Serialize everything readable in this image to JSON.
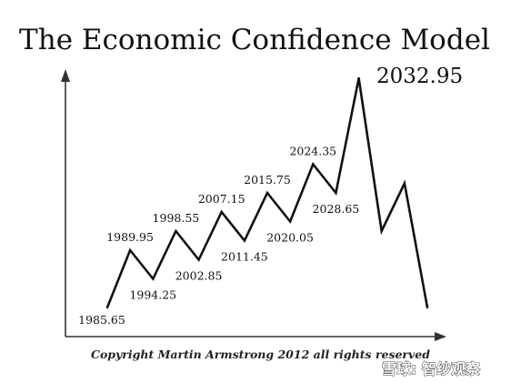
{
  "chart_data": {
    "type": "line",
    "title": "The Economic Confidence Model",
    "xlabel": "",
    "ylabel": "",
    "points": [
      {
        "label": "1985.65",
        "y": 0
      },
      {
        "label": "1989.95",
        "y": 6
      },
      {
        "label": "1994.25",
        "y": 3
      },
      {
        "label": "1998.55",
        "y": 8
      },
      {
        "label": "2002.85",
        "y": 5
      },
      {
        "label": "2007.15",
        "y": 10
      },
      {
        "label": "2011.45",
        "y": 7
      },
      {
        "label": "2015.75",
        "y": 12
      },
      {
        "label": "2020.05",
        "y": 9
      },
      {
        "label": "2024.35",
        "y": 15
      },
      {
        "label": "2028.65",
        "y": 12
      },
      {
        "label": "2032.95",
        "y": 24
      },
      {
        "label": "",
        "y": 8
      },
      {
        "label": "",
        "y": 13
      },
      {
        "label": "",
        "y": 0
      }
    ],
    "peak_label": "2032.95",
    "ylim": [
      -3,
      27
    ],
    "grid": false,
    "legend": "none"
  },
  "copyright": "Copyright Martin Armstrong 2012 all rights reserved",
  "watermark": "雪球: 智纱观察",
  "colors": {
    "line": "#111111",
    "axis": "#333333",
    "background": "#ffffff"
  }
}
